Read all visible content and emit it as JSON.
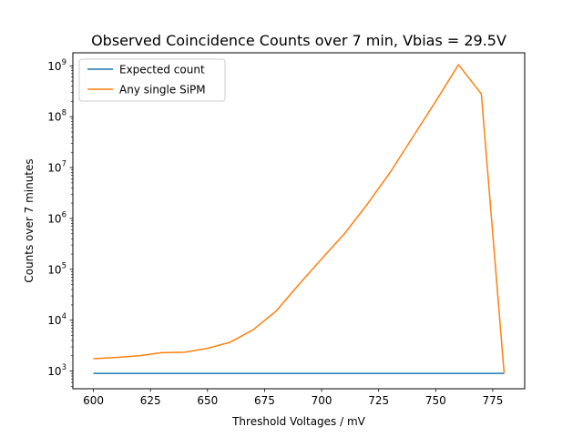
{
  "chart_data": {
    "type": "line",
    "title": "Observed Coincidence Counts over 7 min, Vbias = 29.5V",
    "xlabel": "Threshold Voltages / mV",
    "ylabel": "Counts over 7 minutes",
    "x_scale": "linear",
    "y_scale": "log",
    "xlim": [
      591,
      789
    ],
    "ylim": [
      450,
      1800000000
    ],
    "x_ticks": [
      600,
      625,
      650,
      675,
      700,
      725,
      750,
      775
    ],
    "x_tick_labels": [
      "600",
      "625",
      "650",
      "675",
      "700",
      "725",
      "750",
      "775"
    ],
    "y_ticks": [
      1000,
      10000,
      100000,
      1000000,
      10000000,
      100000000,
      1000000000
    ],
    "y_tick_labels": [
      [
        "10",
        "3"
      ],
      [
        "10",
        "4"
      ],
      [
        "10",
        "5"
      ],
      [
        "10",
        "6"
      ],
      [
        "10",
        "7"
      ],
      [
        "10",
        "8"
      ],
      [
        "10",
        "9"
      ]
    ],
    "grid": false,
    "legend_position": "top-left",
    "series": [
      {
        "name": "Expected count",
        "color": "#1f77b4",
        "x": [
          600,
          780
        ],
        "y": [
          900,
          900
        ]
      },
      {
        "name": "Any single SiPM",
        "color": "#ff7f0e",
        "x": [
          600,
          610,
          620,
          630,
          640,
          650,
          660,
          670,
          680,
          690,
          700,
          710,
          720,
          730,
          740,
          750,
          760,
          770,
          780
        ],
        "y": [
          1750,
          1850,
          2000,
          2300,
          2350,
          2800,
          3700,
          6500,
          15000,
          50000,
          160000,
          500000,
          1900000,
          8000000,
          40000000,
          200000000,
          1050000000,
          280000000,
          900
        ]
      }
    ]
  }
}
